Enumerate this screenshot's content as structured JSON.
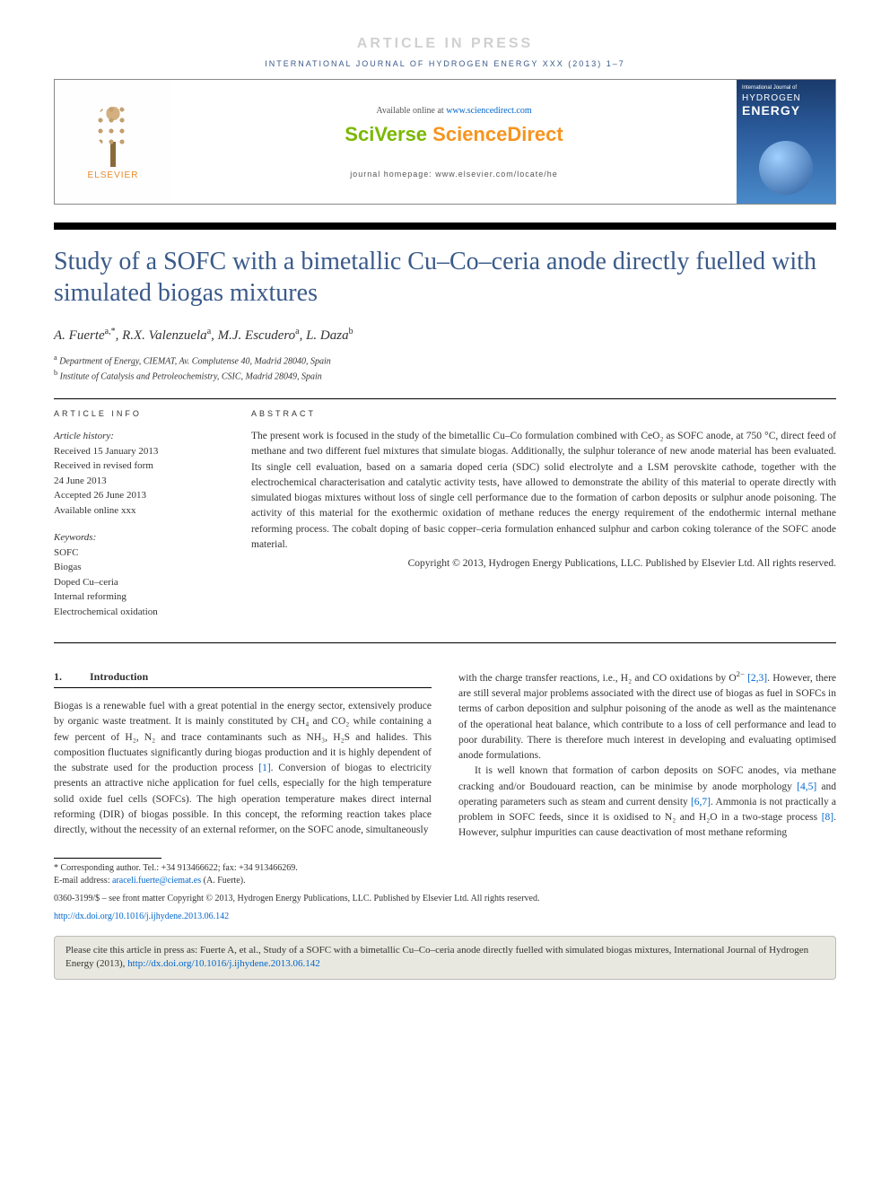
{
  "banner": {
    "press": "ARTICLE IN PRESS"
  },
  "journal_line": "INTERNATIONAL JOURNAL OF HYDROGEN ENERGY XXX (2013) 1–7",
  "header": {
    "elsevier": "ELSEVIER",
    "available_prefix": "Available online at ",
    "available_link": "www.sciencedirect.com",
    "sciverse_sci": "SciVerse ",
    "sciverse_direct": "ScienceDirect",
    "homepage": "journal homepage: www.elsevier.com/locate/he",
    "cover": {
      "journal": "International Journal of",
      "line1": "HYDROGEN",
      "line2": "ENERGY"
    }
  },
  "title": "Study of a SOFC with a bimetallic Cu–Co–ceria anode directly fuelled with simulated biogas mixtures",
  "authors_html": "A. Fuerte<sup>a,*</sup>, R.X. Valenzuela<sup>a</sup>, M.J. Escudero<sup>a</sup>, L. Daza<sup>b</sup>",
  "affiliations": [
    "<sup>a</sup> Department of Energy, CIEMAT, Av. Complutense 40, Madrid 28040, Spain",
    "<sup>b</sup> Institute of Catalysis and Petroleochemistry, CSIC, Madrid 28049, Spain"
  ],
  "info": {
    "heading": "ARTICLE INFO",
    "history_label": "Article history:",
    "history": [
      "Received 15 January 2013",
      "Received in revised form",
      "24 June 2013",
      "Accepted 26 June 2013",
      "Available online xxx"
    ],
    "keywords_label": "Keywords:",
    "keywords": [
      "SOFC",
      "Biogas",
      "Doped Cu–ceria",
      "Internal reforming",
      "Electrochemical oxidation"
    ]
  },
  "abstract": {
    "heading": "ABSTRACT",
    "text": "The present work is focused in the study of the bimetallic Cu–Co formulation combined with CeO₂ as SOFC anode, at 750 °C, direct feed of methane and two different fuel mixtures that simulate biogas. Additionally, the sulphur tolerance of new anode material has been evaluated. Its single cell evaluation, based on a samaria doped ceria (SDC) solid electrolyte and a LSM perovskite cathode, together with the electrochemical characterisation and catalytic activity tests, have allowed to demonstrate the ability of this material to operate directly with simulated biogas mixtures without loss of single cell performance due to the formation of carbon deposits or sulphur anode poisoning. The activity of this material for the exothermic oxidation of methane reduces the energy requirement of the endothermic internal methane reforming process. The cobalt doping of basic copper–ceria formulation enhanced sulphur and carbon coking tolerance of the SOFC anode material.",
    "copyright": "Copyright © 2013, Hydrogen Energy Publications, LLC. Published by Elsevier Ltd. All rights reserved."
  },
  "section1": {
    "num": "1.",
    "title": "Introduction"
  },
  "body": {
    "left_p1": "Biogas is a renewable fuel with a great potential in the energy sector, extensively produce by organic waste treatment. It is mainly constituted by CH₄ and CO₂ while containing a few percent of H₂, N₂ and trace contaminants such as NH₃, H₂S and halides. This composition fluctuates significantly during biogas production and it is highly dependent of the substrate used for the production process <span class=\"ref\">[1]</span>. Conversion of biogas to electricity presents an attractive niche application for fuel cells, especially for the high temperature solid oxide fuel cells (SOFCs). The high operation temperature makes direct internal reforming (DIR) of biogas possible. In this concept, the reforming reaction takes place directly, without the necessity of an external reformer, on the SOFC anode, simultaneously",
    "right_p1": "with the charge transfer reactions, i.e., H₂ and CO oxidations by O<sup class=\"charge\">2−</sup> <span class=\"ref\">[2,3]</span>. However, there are still several major problems associated with the direct use of biogas as fuel in SOFCs in terms of carbon deposition and sulphur poisoning of the anode as well as the maintenance of the operational heat balance, which contribute to a loss of cell performance and lead to poor durability. There is therefore much interest in developing and evaluating optimised anode formulations.",
    "right_p2": "It is well known that formation of carbon deposits on SOFC anodes, via methane cracking and/or Boudouard reaction, can be minimise by anode morphology <span class=\"ref\">[4,5]</span> and operating parameters such as steam and current density <span class=\"ref\">[6,7]</span>. Ammonia is not practically a problem in SOFC feeds, since it is oxidised to N₂ and H₂O in a two-stage process <span class=\"ref\">[8]</span>. However, sulphur impurities can cause deactivation of most methane reforming"
  },
  "footnote": {
    "corr": "* Corresponding author. Tel.: +34 913466622; fax: +34 913466269.",
    "email_label": "E-mail address: ",
    "email": "araceli.fuerte@ciemat.es",
    "email_suffix": " (A. Fuerte)."
  },
  "bottom": {
    "issn": "0360-3199/$ – see front matter Copyright © 2013, Hydrogen Energy Publications, LLC. Published by Elsevier Ltd. All rights reserved.",
    "doi": "http://dx.doi.org/10.1016/j.ijhydene.2013.06.142"
  },
  "citebox": {
    "text_prefix": "Please cite this article in press as: Fuerte A, et al., Study of a SOFC with a bimetallic Cu–Co–ceria anode directly fuelled with simulated biogas mixtures, International Journal of Hydrogen Energy (2013), ",
    "link": "http://dx.doi.org/10.1016/j.ijhydene.2013.06.142"
  }
}
